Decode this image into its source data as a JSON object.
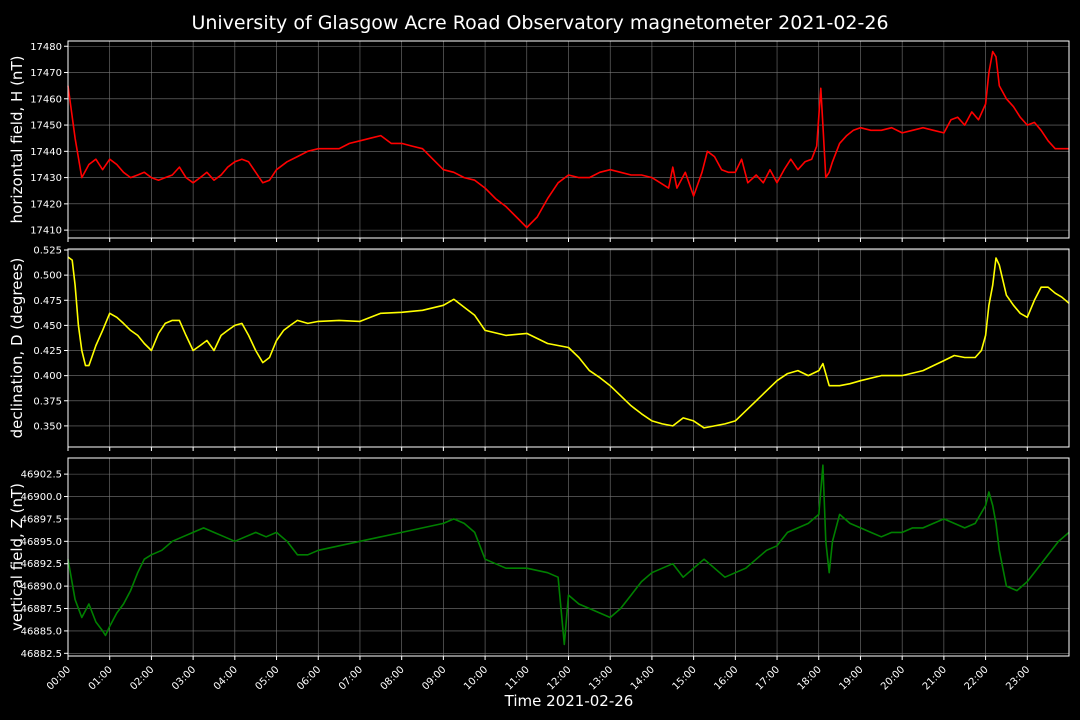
{
  "figure": {
    "title": "University of Glasgow Acre Road Observatory magnetometer 2021-02-26",
    "xlabel": "Time 2021-02-26",
    "background": "#000000",
    "grid_color": "#777777",
    "spine_color": "#ffffff"
  },
  "chart_data": [
    {
      "type": "line",
      "name": "horizontal field",
      "ylabel": "horizontal field, H (nT)",
      "color": "#ff0000",
      "xlim": [
        0,
        24
      ],
      "ylim": [
        17407,
        17482
      ],
      "yticks": [
        17410,
        17420,
        17430,
        17440,
        17450,
        17460,
        17470,
        17480
      ],
      "ytick_labels": [
        "17410",
        "17420",
        "17430",
        "17440",
        "17450",
        "17460",
        "17470",
        "17480"
      ],
      "grid": true,
      "x": [
        0.0,
        0.17,
        0.33,
        0.5,
        0.67,
        0.83,
        1.0,
        1.17,
        1.33,
        1.5,
        1.67,
        1.83,
        2.0,
        2.17,
        2.33,
        2.5,
        2.67,
        2.83,
        3.0,
        3.17,
        3.33,
        3.5,
        3.67,
        3.83,
        4.0,
        4.17,
        4.33,
        4.5,
        4.67,
        4.83,
        5.0,
        5.25,
        5.5,
        5.75,
        6.0,
        6.25,
        6.5,
        6.75,
        7.0,
        7.25,
        7.5,
        7.75,
        8.0,
        8.25,
        8.5,
        8.75,
        9.0,
        9.25,
        9.5,
        9.75,
        10.0,
        10.25,
        10.5,
        10.75,
        11.0,
        11.25,
        11.5,
        11.75,
        12.0,
        12.25,
        12.5,
        12.75,
        13.0,
        13.25,
        13.5,
        13.75,
        14.0,
        14.2,
        14.4,
        14.5,
        14.6,
        14.8,
        15.0,
        15.2,
        15.33,
        15.5,
        15.67,
        15.83,
        16.0,
        16.15,
        16.3,
        16.5,
        16.67,
        16.83,
        17.0,
        17.17,
        17.33,
        17.5,
        17.67,
        17.83,
        17.95,
        18.05,
        18.1,
        18.17,
        18.25,
        18.33,
        18.5,
        18.67,
        18.83,
        19.0,
        19.25,
        19.5,
        19.75,
        20.0,
        20.25,
        20.5,
        20.75,
        21.0,
        21.17,
        21.33,
        21.5,
        21.67,
        21.83,
        22.0,
        22.08,
        22.17,
        22.25,
        22.33,
        22.5,
        22.67,
        22.83,
        23.0,
        23.17,
        23.33,
        23.5,
        23.67,
        23.83,
        24.0
      ],
      "values": [
        17465,
        17445,
        17430,
        17435,
        17437,
        17433,
        17437,
        17435,
        17432,
        17430,
        17431,
        17432,
        17430,
        17429,
        17430,
        17431,
        17434,
        17430,
        17428,
        17430,
        17432,
        17429,
        17431,
        17434,
        17436,
        17437,
        17436,
        17432,
        17428,
        17429,
        17433,
        17436,
        17438,
        17440,
        17441,
        17441,
        17441,
        17443,
        17444,
        17445,
        17446,
        17443,
        17443,
        17442,
        17441,
        17437,
        17433,
        17432,
        17430,
        17429,
        17426,
        17422,
        17419,
        17415,
        17411,
        17415,
        17422,
        17428,
        17431,
        17430,
        17430,
        17432,
        17433,
        17432,
        17431,
        17431,
        17430,
        17428,
        17426,
        17434,
        17426,
        17432,
        17423,
        17432,
        17440,
        17438,
        17433,
        17432,
        17432,
        17437,
        17428,
        17431,
        17428,
        17433,
        17428,
        17433,
        17437,
        17433,
        17436,
        17437,
        17442,
        17464,
        17450,
        17430,
        17432,
        17436,
        17443,
        17446,
        17448,
        17449,
        17448,
        17448,
        17449,
        17447,
        17448,
        17449,
        17448,
        17447,
        17452,
        17453,
        17450,
        17455,
        17452,
        17458,
        17470,
        17478,
        17476,
        17465,
        17460,
        17457,
        17453,
        17450,
        17451,
        17448,
        17444,
        17441,
        17441,
        17441
      ]
    },
    {
      "type": "line",
      "name": "declination",
      "ylabel": "declination, D (degrees)",
      "color": "#ffff00",
      "xlim": [
        0,
        24
      ],
      "ylim": [
        0.329,
        0.526
      ],
      "yticks": [
        0.35,
        0.375,
        0.4,
        0.425,
        0.45,
        0.475,
        0.5,
        0.525
      ],
      "ytick_labels": [
        "0.350",
        "0.375",
        "0.400",
        "0.425",
        "0.450",
        "0.475",
        "0.500",
        "0.525"
      ],
      "grid": true,
      "x": [
        0.0,
        0.1,
        0.17,
        0.25,
        0.33,
        0.42,
        0.5,
        0.67,
        0.83,
        1.0,
        1.17,
        1.33,
        1.5,
        1.67,
        1.83,
        2.0,
        2.17,
        2.33,
        2.5,
        2.67,
        2.83,
        3.0,
        3.17,
        3.33,
        3.5,
        3.67,
        3.83,
        4.0,
        4.17,
        4.33,
        4.5,
        4.67,
        4.83,
        5.0,
        5.17,
        5.33,
        5.5,
        5.75,
        6.0,
        6.5,
        7.0,
        7.5,
        8.0,
        8.5,
        9.0,
        9.25,
        9.5,
        9.75,
        10.0,
        10.5,
        11.0,
        11.5,
        12.0,
        12.25,
        12.5,
        12.75,
        13.0,
        13.25,
        13.5,
        13.75,
        14.0,
        14.25,
        14.5,
        14.75,
        15.0,
        15.25,
        15.5,
        15.75,
        16.0,
        16.25,
        16.5,
        16.75,
        17.0,
        17.25,
        17.5,
        17.75,
        18.0,
        18.1,
        18.25,
        18.5,
        18.75,
        19.0,
        19.5,
        20.0,
        20.5,
        20.75,
        21.0,
        21.25,
        21.5,
        21.75,
        21.9,
        22.0,
        22.08,
        22.17,
        22.25,
        22.33,
        22.5,
        22.67,
        22.83,
        23.0,
        23.17,
        23.33,
        23.5,
        23.67,
        23.83,
        24.0
      ],
      "values": [
        0.518,
        0.515,
        0.49,
        0.45,
        0.425,
        0.41,
        0.41,
        0.43,
        0.445,
        0.462,
        0.458,
        0.452,
        0.445,
        0.44,
        0.432,
        0.425,
        0.442,
        0.452,
        0.455,
        0.455,
        0.44,
        0.425,
        0.43,
        0.435,
        0.425,
        0.44,
        0.445,
        0.45,
        0.452,
        0.44,
        0.425,
        0.413,
        0.418,
        0.435,
        0.445,
        0.45,
        0.455,
        0.452,
        0.454,
        0.455,
        0.454,
        0.462,
        0.463,
        0.465,
        0.47,
        0.476,
        0.468,
        0.46,
        0.445,
        0.44,
        0.442,
        0.432,
        0.428,
        0.418,
        0.405,
        0.398,
        0.39,
        0.38,
        0.37,
        0.362,
        0.355,
        0.352,
        0.35,
        0.358,
        0.355,
        0.348,
        0.35,
        0.352,
        0.355,
        0.365,
        0.375,
        0.385,
        0.395,
        0.402,
        0.405,
        0.4,
        0.405,
        0.412,
        0.39,
        0.39,
        0.392,
        0.395,
        0.4,
        0.4,
        0.405,
        0.41,
        0.415,
        0.42,
        0.418,
        0.418,
        0.425,
        0.44,
        0.47,
        0.49,
        0.517,
        0.51,
        0.48,
        0.47,
        0.462,
        0.458,
        0.475,
        0.488,
        0.488,
        0.482,
        0.478,
        0.472
      ]
    },
    {
      "type": "line",
      "name": "vertical field",
      "ylabel": "vertical field, Z (nT)",
      "color": "#008000",
      "xlim": [
        0,
        24
      ],
      "ylim": [
        46882.2,
        46904.3
      ],
      "yticks": [
        46882.5,
        46885.0,
        46887.5,
        46890.0,
        46892.5,
        46895.0,
        46897.5,
        46900.0,
        46902.5
      ],
      "ytick_labels": [
        "46882.5",
        "46885.0",
        "46887.5",
        "46890.0",
        "46892.5",
        "46895.0",
        "46897.5",
        "46900.0",
        "46902.5"
      ],
      "grid": true,
      "x": [
        0.0,
        0.17,
        0.33,
        0.5,
        0.67,
        0.83,
        0.9,
        1.0,
        1.17,
        1.33,
        1.5,
        1.67,
        1.83,
        2.0,
        2.25,
        2.5,
        2.75,
        3.0,
        3.25,
        3.5,
        3.75,
        4.0,
        4.25,
        4.5,
        4.75,
        5.0,
        5.25,
        5.5,
        5.75,
        6.0,
        6.5,
        7.0,
        7.5,
        8.0,
        8.5,
        9.0,
        9.25,
        9.5,
        9.75,
        10.0,
        10.5,
        11.0,
        11.5,
        11.75,
        11.9,
        12.0,
        12.25,
        12.5,
        12.75,
        13.0,
        13.25,
        13.5,
        13.75,
        14.0,
        14.25,
        14.5,
        14.75,
        15.0,
        15.25,
        15.5,
        15.75,
        16.0,
        16.25,
        16.5,
        16.75,
        17.0,
        17.25,
        17.5,
        17.75,
        18.0,
        18.1,
        18.17,
        18.25,
        18.33,
        18.5,
        18.75,
        19.0,
        19.25,
        19.5,
        19.75,
        20.0,
        20.25,
        20.5,
        20.75,
        21.0,
        21.25,
        21.5,
        21.75,
        22.0,
        22.08,
        22.17,
        22.25,
        22.33,
        22.5,
        22.75,
        23.0,
        23.25,
        23.5,
        23.75,
        24.0
      ],
      "values": [
        46893.0,
        46888.5,
        46886.5,
        46888.0,
        46886.0,
        46885.0,
        46884.5,
        46885.5,
        46887.0,
        46888.0,
        46889.5,
        46891.5,
        46893.0,
        46893.5,
        46894.0,
        46895.0,
        46895.5,
        46896.0,
        46896.5,
        46896.0,
        46895.5,
        46895.0,
        46895.5,
        46896.0,
        46895.5,
        46896.0,
        46895.0,
        46893.5,
        46893.5,
        46894.0,
        46894.5,
        46895.0,
        46895.5,
        46896.0,
        46896.5,
        46897.0,
        46897.5,
        46897.0,
        46896.0,
        46893.0,
        46892.0,
        46892.0,
        46891.5,
        46891.0,
        46883.5,
        46889.0,
        46888.0,
        46887.5,
        46887.0,
        46886.5,
        46887.5,
        46889.0,
        46890.5,
        46891.5,
        46892.0,
        46892.5,
        46891.0,
        46892.0,
        46893.0,
        46892.0,
        46891.0,
        46891.5,
        46892.0,
        46893.0,
        46894.0,
        46894.5,
        46896.0,
        46896.5,
        46897.0,
        46898.0,
        46903.5,
        46895.0,
        46891.5,
        46895.0,
        46898.0,
        46897.0,
        46896.5,
        46896.0,
        46895.5,
        46896.0,
        46896.0,
        46896.5,
        46896.5,
        46897.0,
        46897.5,
        46897.0,
        46896.5,
        46897.0,
        46899.0,
        46900.5,
        46899.0,
        46897.0,
        46894.0,
        46890.0,
        46889.5,
        46890.5,
        46892.0,
        46893.5,
        46895.0,
        46896.0
      ]
    }
  ],
  "x_axis": {
    "ticks": [
      0,
      1,
      2,
      3,
      4,
      5,
      6,
      7,
      8,
      9,
      10,
      11,
      12,
      13,
      14,
      15,
      16,
      17,
      18,
      19,
      20,
      21,
      22,
      23
    ],
    "tick_labels": [
      "00:00",
      "01:00",
      "02:00",
      "03:00",
      "04:00",
      "05:00",
      "06:00",
      "07:00",
      "08:00",
      "09:00",
      "10:00",
      "11:00",
      "12:00",
      "13:00",
      "14:00",
      "15:00",
      "16:00",
      "17:00",
      "18:00",
      "19:00",
      "20:00",
      "21:00",
      "22:00",
      "23:00"
    ]
  }
}
